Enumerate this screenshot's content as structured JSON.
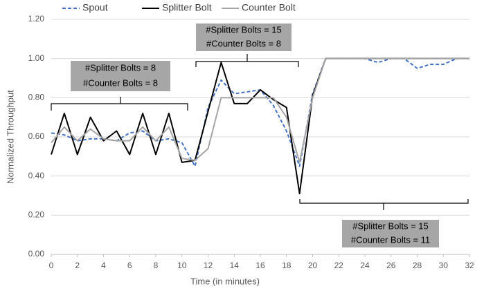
{
  "chart_data": {
    "type": "line",
    "x_label": "Time (in minutes)",
    "y_label": "Normalized Throughput",
    "x": [
      0,
      1,
      2,
      3,
      4,
      5,
      6,
      7,
      8,
      9,
      10,
      11,
      12,
      13,
      14,
      15,
      16,
      17,
      18,
      19,
      20,
      21,
      22,
      23,
      24,
      25,
      26,
      27,
      28,
      29,
      30,
      31,
      32
    ],
    "xlim": [
      0,
      32
    ],
    "xticks": [
      0,
      2,
      4,
      6,
      8,
      10,
      12,
      14,
      16,
      18,
      20,
      22,
      24,
      26,
      28,
      30,
      32
    ],
    "ylim": [
      0,
      1.2
    ],
    "yticks": [
      {
        "value": 0,
        "label": "0.00"
      },
      {
        "value": 0.2,
        "label": "0.20"
      },
      {
        "value": 0.4,
        "label": "0.40"
      },
      {
        "value": 0.6,
        "label": "0.60"
      },
      {
        "value": 0.8,
        "label": "0.80"
      },
      {
        "value": 1.0,
        "label": "1.00"
      },
      {
        "value": 1.2,
        "label": "1.20"
      }
    ],
    "grid": true,
    "legend": "top",
    "series": [
      {
        "name": "Spout",
        "color": "#4472c4",
        "dash": true,
        "values": [
          0.62,
          0.61,
          0.58,
          0.59,
          0.59,
          0.58,
          0.62,
          0.63,
          0.58,
          0.59,
          0.57,
          0.45,
          0.75,
          0.89,
          0.82,
          0.83,
          0.84,
          0.76,
          0.63,
          0.45,
          0.82,
          1.0,
          1.0,
          1.0,
          1.0,
          0.98,
          1.0,
          1.0,
          0.95,
          0.97,
          0.97,
          1.0,
          1.0
        ]
      },
      {
        "name": "Splitter Bolt",
        "color": "#000000",
        "dash": false,
        "values": [
          0.51,
          0.72,
          0.51,
          0.7,
          0.58,
          0.63,
          0.51,
          0.72,
          0.51,
          0.72,
          0.47,
          0.48,
          0.73,
          0.98,
          0.77,
          0.77,
          0.84,
          0.79,
          0.75,
          0.31,
          0.81,
          1.0,
          1.0,
          1.0,
          1.0,
          1.0,
          1.0,
          1.0,
          1.0,
          1.0,
          1.0,
          1.0,
          1.0
        ]
      },
      {
        "name": "Counter Bolt",
        "color": "#a5a5a5",
        "dash": false,
        "values": [
          0.57,
          0.65,
          0.58,
          0.64,
          0.59,
          0.58,
          0.58,
          0.65,
          0.58,
          0.65,
          0.49,
          0.48,
          0.54,
          0.8,
          0.8,
          0.8,
          0.8,
          0.8,
          0.7,
          0.47,
          0.8,
          1.0,
          1.0,
          1.0,
          1.0,
          1.0,
          1.0,
          1.0,
          1.0,
          1.0,
          1.0,
          1.0,
          1.0
        ]
      }
    ],
    "annotations": [
      [
        "#Splitter Bolts = 8",
        "#Counter Bolts = 8"
      ],
      [
        "#Splitter Bolts = 15",
        "#Counter Bolts = 8"
      ],
      [
        "#Splitter Bolts = 15",
        "#Counter Bolts = 11"
      ]
    ]
  }
}
